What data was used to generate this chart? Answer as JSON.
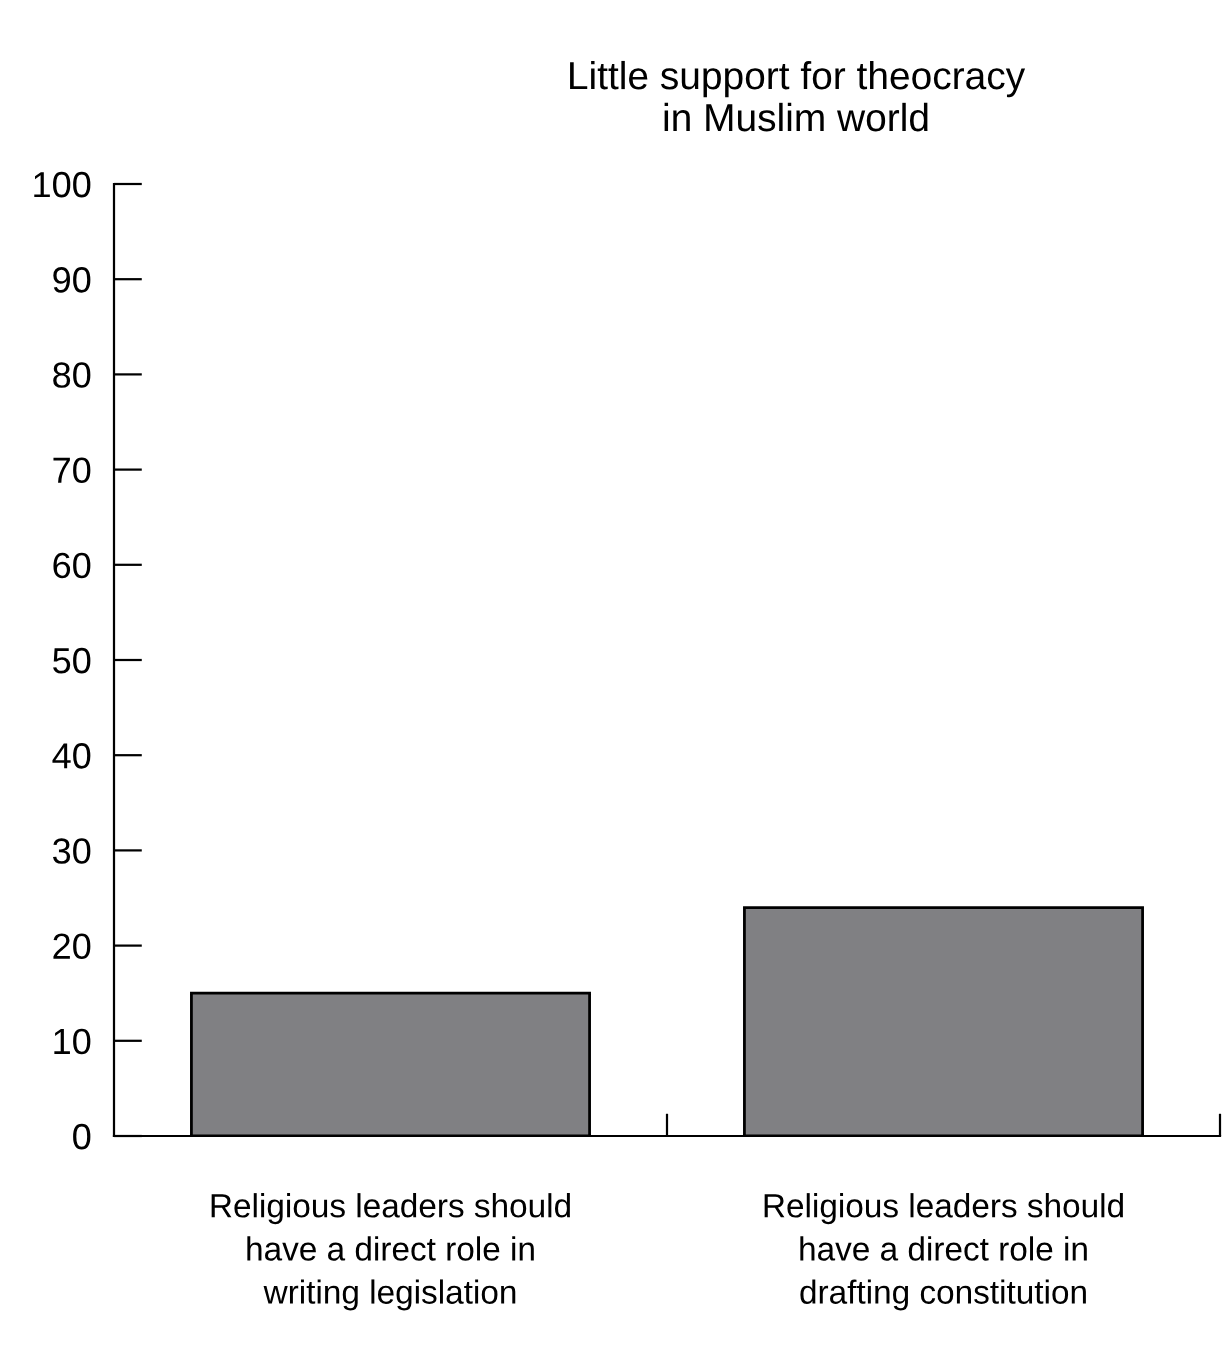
{
  "chart_data": {
    "type": "bar",
    "title": "Little support for theocracy\nin Muslim world",
    "categories": [
      "Religious leaders should\nhave a direct role in\nwriting legislation",
      "Religious leaders should\nhave a direct role in\ndrafting constitution"
    ],
    "values": [
      15,
      24
    ],
    "color": "#808083",
    "ylim": [
      0,
      100
    ],
    "yticks": [
      0,
      10,
      20,
      30,
      40,
      50,
      60,
      70,
      80,
      90,
      100
    ],
    "grid": false,
    "legend": false
  }
}
